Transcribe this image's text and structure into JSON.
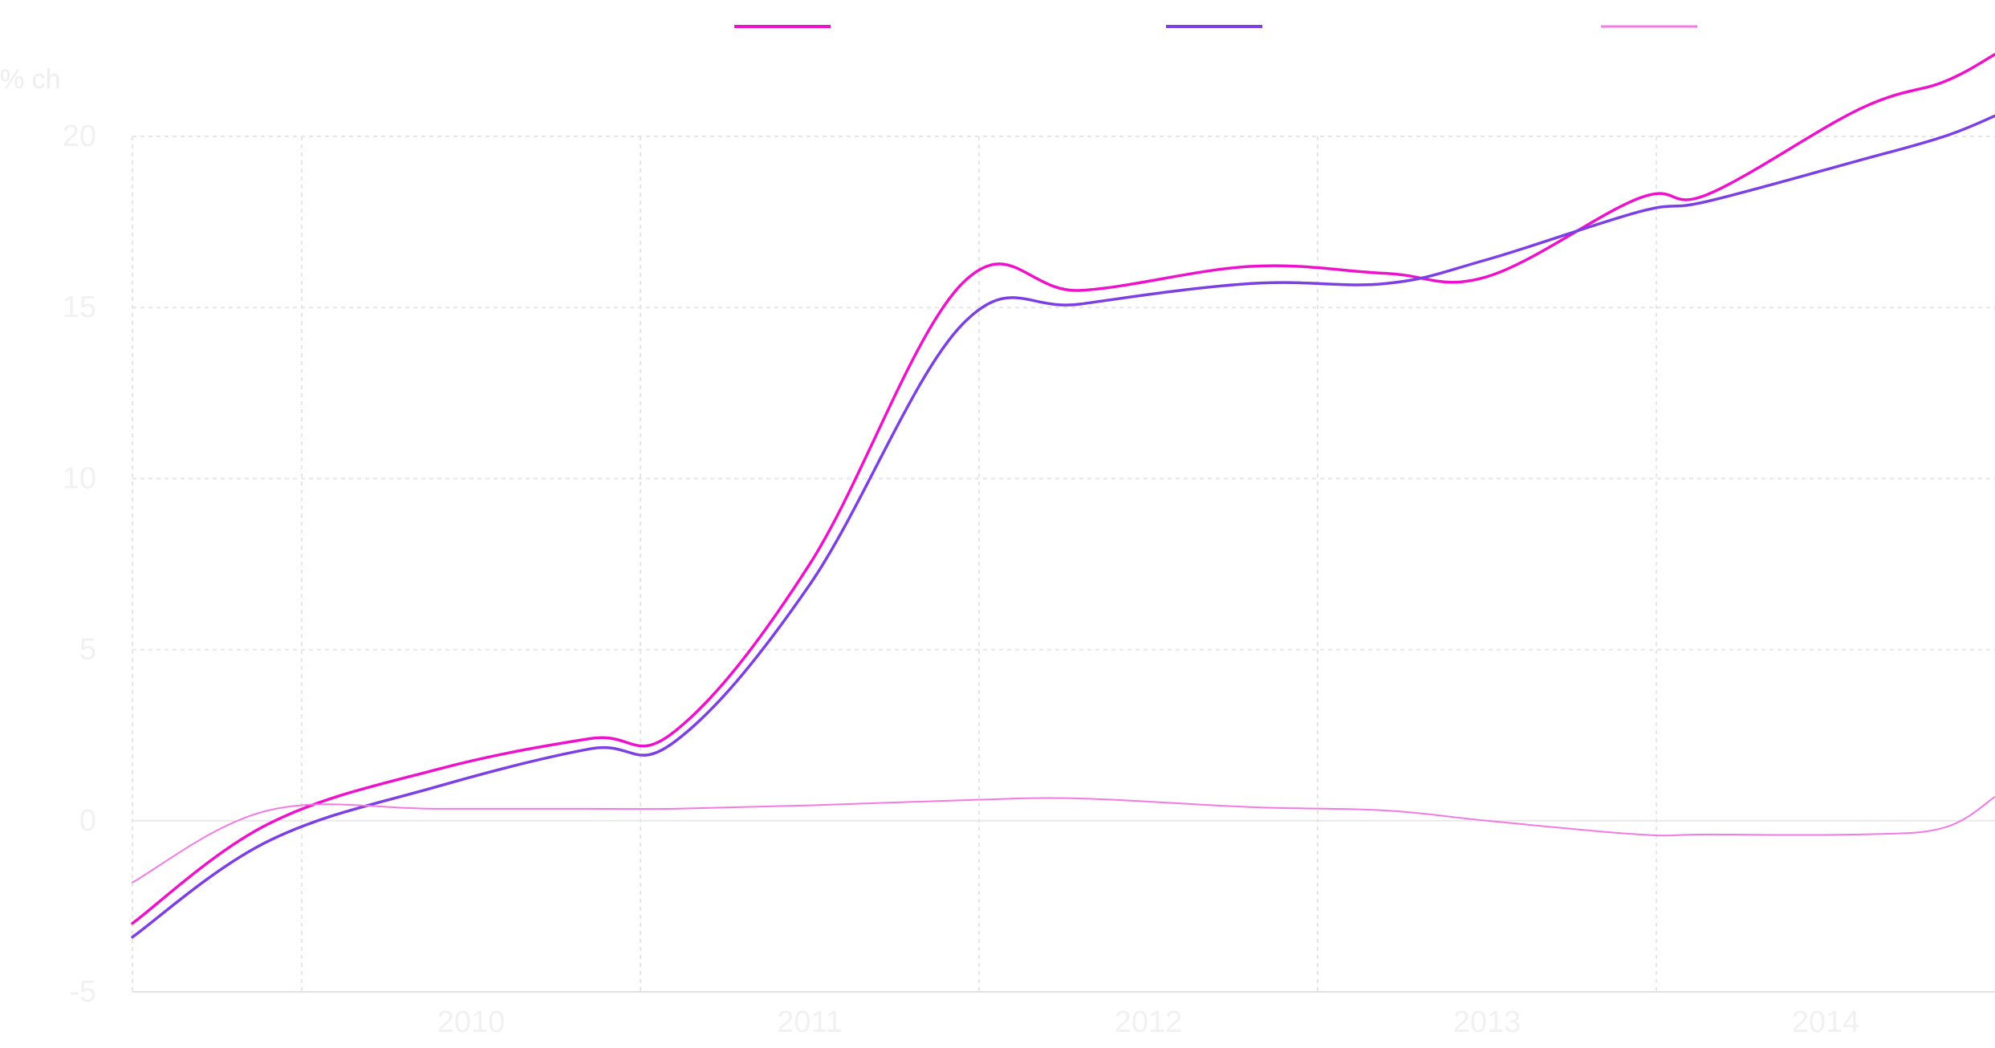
{
  "chart_data": {
    "type": "line",
    "title": "",
    "unit_label": "% ch",
    "xlabel": "",
    "ylabel": "",
    "x_ticks": [
      "2010",
      "2011",
      "2012",
      "2013",
      "2014"
    ],
    "x": [
      2009.5,
      2009.9,
      2010.4,
      2010.85,
      2011.1,
      2011.5,
      2011.95,
      2012.3,
      2012.8,
      2013.2,
      2013.5,
      2013.95,
      2014.15,
      2014.6,
      2014.85,
      2015.0
    ],
    "ylim": [
      -5,
      20
    ],
    "y_ticks": [
      -5,
      0,
      5,
      10,
      15,
      20
    ],
    "grid": true,
    "legend_position": "top",
    "series": [
      {
        "name": "",
        "color": "#ee11cc",
        "values": [
          -3.0,
          -0.1,
          1.5,
          2.4,
          2.6,
          7.5,
          15.7,
          15.5,
          16.2,
          16.0,
          15.9,
          18.2,
          18.3,
          20.8,
          21.6,
          22.4
        ]
      },
      {
        "name": "",
        "color": "#7b3fe4",
        "values": [
          -3.4,
          -0.6,
          1.0,
          2.1,
          2.3,
          6.9,
          14.5,
          15.1,
          15.7,
          15.7,
          16.4,
          17.8,
          18.1,
          19.3,
          20.0,
          20.6
        ]
      },
      {
        "name": "",
        "color": "#f27ae5",
        "values": [
          -1.8,
          0.3,
          0.35,
          0.35,
          0.35,
          0.45,
          0.6,
          0.65,
          0.4,
          0.3,
          0.0,
          -0.4,
          -0.4,
          -0.4,
          -0.2,
          0.7
        ]
      }
    ]
  }
}
